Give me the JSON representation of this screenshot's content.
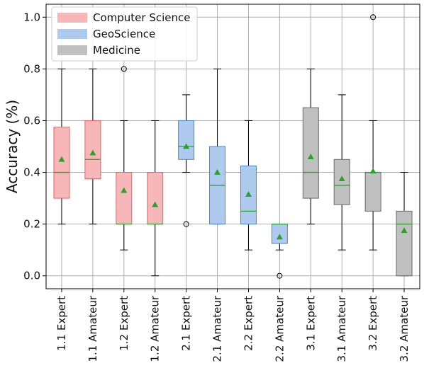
{
  "chart_data": {
    "type": "box",
    "ylabel": "Accuracy (%)",
    "ylim": [
      -0.05,
      1.05
    ],
    "yticks": [
      0.0,
      0.2,
      0.4,
      0.6,
      0.8,
      1.0
    ],
    "ytick_labels": [
      "0.0",
      "0.2",
      "0.4",
      "0.6",
      "0.8",
      "1.0"
    ],
    "grid": true,
    "legend_position": "top-left",
    "categories": [
      "1.1 Expert",
      "1.1 Amateur",
      "1.2 Expert",
      "1.2 Amateur",
      "2.1 Expert",
      "2.1 Amateur",
      "2.2 Expert",
      "2.2 Amateur",
      "3.1 Expert",
      "3.1 Amateur",
      "3.2 Expert",
      "3.2 Amateur"
    ],
    "series": [
      {
        "name": "Computer Science",
        "fill": "#f7b6b8",
        "edge": "#e8646a",
        "indices": [
          0,
          1,
          2,
          3
        ]
      },
      {
        "name": "GeoScience",
        "fill": "#aecbef",
        "edge": "#4a86d4",
        "indices": [
          4,
          5,
          6,
          7
        ]
      },
      {
        "name": "Medicine",
        "fill": "#c0c0c0",
        "edge": "#6a6a6a",
        "indices": [
          8,
          9,
          10,
          11
        ]
      }
    ],
    "boxes": [
      {
        "whisker_low": 0.2,
        "q1": 0.3,
        "median": 0.4,
        "q3": 0.575,
        "whisker_high": 0.8,
        "mean": 0.45,
        "outliers": []
      },
      {
        "whisker_low": 0.2,
        "q1": 0.375,
        "median": 0.45,
        "q3": 0.6,
        "whisker_high": 0.8,
        "mean": 0.475,
        "outliers": []
      },
      {
        "whisker_low": 0.1,
        "q1": 0.2,
        "median": 0.2,
        "q3": 0.4,
        "whisker_high": 0.6,
        "mean": 0.33,
        "outliers": [
          0.8
        ]
      },
      {
        "whisker_low": 0.0,
        "q1": 0.2,
        "median": 0.2,
        "q3": 0.4,
        "whisker_high": 0.6,
        "mean": 0.275,
        "outliers": []
      },
      {
        "whisker_low": 0.4,
        "q1": 0.45,
        "median": 0.5,
        "q3": 0.6,
        "whisker_high": 0.7,
        "mean": 0.5,
        "outliers": [
          0.2
        ]
      },
      {
        "whisker_low": 0.2,
        "q1": 0.2,
        "median": 0.35,
        "q3": 0.5,
        "whisker_high": 0.8,
        "mean": 0.4,
        "outliers": []
      },
      {
        "whisker_low": 0.1,
        "q1": 0.2,
        "median": 0.25,
        "q3": 0.425,
        "whisker_high": 0.6,
        "mean": 0.315,
        "outliers": []
      },
      {
        "whisker_low": 0.1,
        "q1": 0.125,
        "median": 0.2,
        "q3": 0.2,
        "whisker_high": 0.2,
        "mean": 0.15,
        "outliers": [
          0.0
        ]
      },
      {
        "whisker_low": 0.2,
        "q1": 0.3,
        "median": 0.4,
        "q3": 0.65,
        "whisker_high": 0.8,
        "mean": 0.46,
        "outliers": []
      },
      {
        "whisker_low": 0.1,
        "q1": 0.275,
        "median": 0.35,
        "q3": 0.45,
        "whisker_high": 0.7,
        "mean": 0.375,
        "outliers": []
      },
      {
        "whisker_low": 0.1,
        "q1": 0.25,
        "median": 0.4,
        "q3": 0.4,
        "whisker_high": 0.6,
        "mean": 0.405,
        "outliers": [
          1.0
        ]
      },
      {
        "whisker_low": 0.0,
        "q1": 0.0,
        "median": 0.2,
        "q3": 0.25,
        "whisker_high": 0.4,
        "mean": 0.175,
        "outliers": []
      }
    ],
    "median_color": "#2ca02c",
    "mean_color": "#2ca02c",
    "grid_color": "#b0b0b0"
  }
}
